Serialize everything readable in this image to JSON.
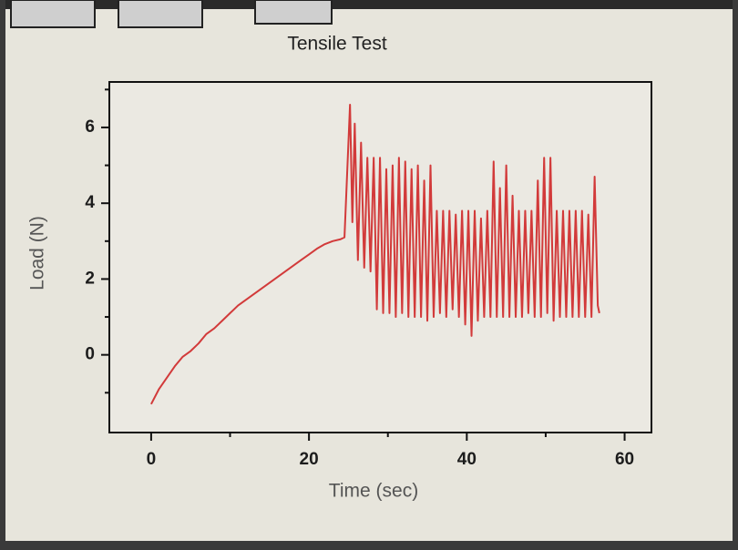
{
  "chart_data": {
    "type": "line",
    "title": "Tensile Test",
    "xlabel": "Time (sec)",
    "ylabel": "Load (N)",
    "color": "#d23a3a",
    "xlim": [
      -5.3,
      63.4
    ],
    "ylim": [
      -2.05,
      7.2
    ],
    "xticks": [
      0,
      20,
      40,
      60
    ],
    "yticks": [
      0,
      2,
      4,
      6
    ],
    "xminorticks": [
      10,
      30,
      50
    ],
    "yminorticks": [
      -1,
      1,
      3,
      5,
      7
    ],
    "x": [
      0,
      1,
      2,
      3,
      4,
      5,
      6,
      7,
      8,
      9,
      10,
      11,
      12,
      13,
      14,
      15,
      16,
      17,
      18,
      19,
      20,
      21,
      22,
      23,
      24,
      24.5,
      25.2,
      25.5,
      25.8,
      26.2,
      26.6,
      27,
      27.4,
      27.8,
      28.2,
      28.6,
      29,
      29.4,
      29.8,
      30.2,
      30.6,
      31,
      31.4,
      31.8,
      32.2,
      32.6,
      33,
      33.4,
      33.8,
      34.2,
      34.6,
      35,
      35.4,
      35.8,
      36.2,
      36.6,
      37,
      37.4,
      37.8,
      38.2,
      38.6,
      39,
      39.4,
      39.8,
      40.2,
      40.6,
      41,
      41.4,
      41.8,
      42.2,
      42.6,
      43,
      43.4,
      43.8,
      44.2,
      44.6,
      45,
      45.4,
      45.8,
      46.2,
      46.6,
      47,
      47.4,
      47.8,
      48.2,
      48.6,
      49,
      49.4,
      49.8,
      50.2,
      50.6,
      51,
      51.4,
      51.8,
      52.2,
      52.6,
      53,
      53.4,
      53.8,
      54.2,
      54.6,
      55,
      55.4,
      55.8,
      56.2,
      56.6,
      56.8
    ],
    "values": [
      -1.3,
      -0.9,
      -0.6,
      -0.3,
      -0.05,
      0.1,
      0.3,
      0.55,
      0.7,
      0.9,
      1.1,
      1.3,
      1.45,
      1.6,
      1.75,
      1.9,
      2.05,
      2.2,
      2.35,
      2.5,
      2.65,
      2.8,
      2.92,
      3.0,
      3.05,
      3.1,
      6.6,
      3.5,
      6.1,
      2.5,
      5.6,
      2.3,
      5.2,
      2.2,
      5.2,
      1.2,
      5.2,
      1.1,
      4.9,
      1.1,
      5.0,
      1.0,
      5.2,
      1.1,
      5.1,
      1.0,
      4.9,
      1.0,
      5.0,
      1.0,
      4.6,
      0.9,
      5.0,
      1.0,
      3.8,
      1.1,
      3.8,
      1.0,
      3.8,
      1.2,
      3.7,
      1.0,
      3.8,
      0.8,
      3.8,
      0.5,
      3.8,
      0.9,
      3.6,
      1.0,
      3.8,
      1.0,
      5.1,
      1.0,
      4.4,
      1.0,
      5.0,
      1.0,
      4.2,
      1.0,
      3.8,
      1.0,
      3.8,
      1.1,
      3.8,
      1.0,
      4.6,
      1.0,
      5.2,
      1.1,
      5.2,
      0.9,
      3.8,
      1.0,
      3.8,
      1.0,
      3.8,
      1.0,
      3.8,
      1.0,
      3.8,
      1.0,
      3.7,
      1.0,
      4.7,
      1.3,
      1.1
    ]
  }
}
